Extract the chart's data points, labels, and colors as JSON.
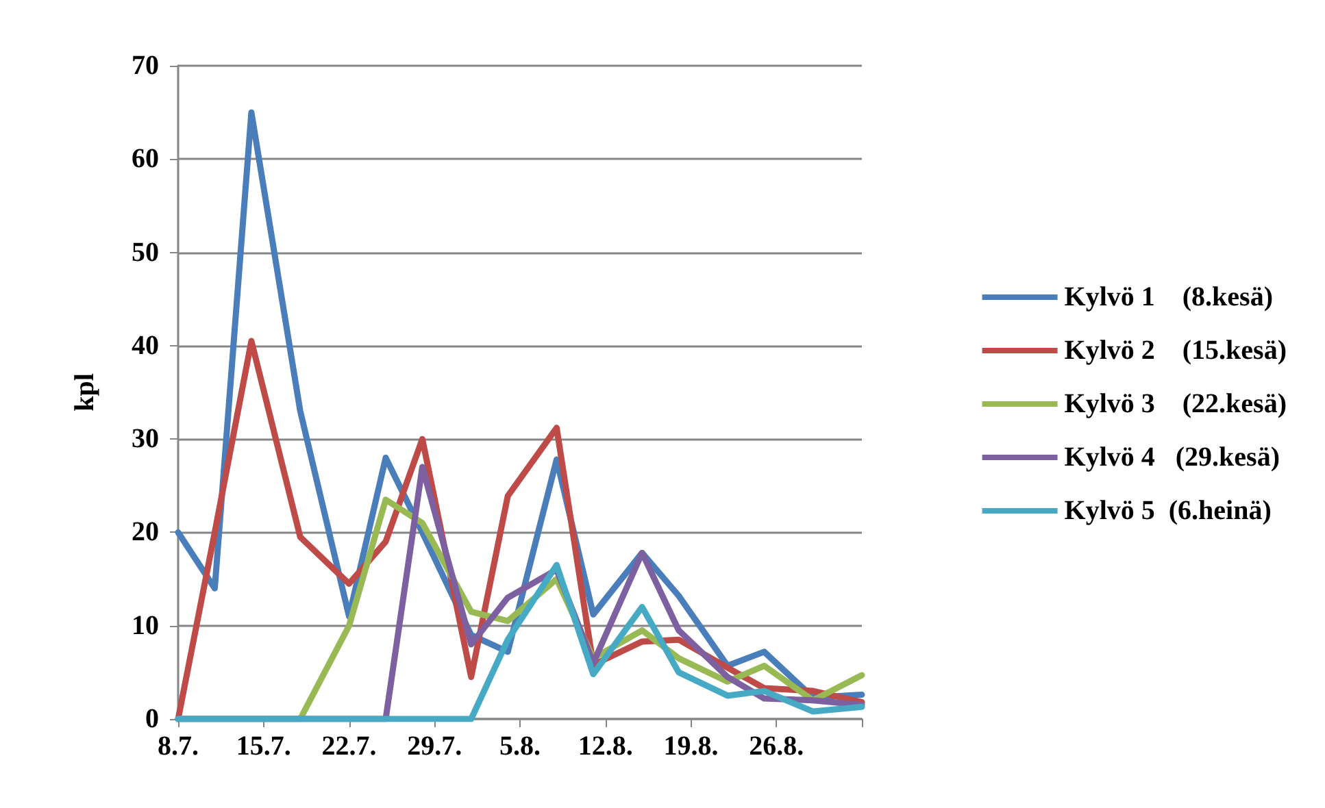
{
  "chart_data": {
    "type": "line",
    "ylabel": "kpl",
    "x": [
      "--07-08",
      "--07-11",
      "--07-14",
      "--07-18",
      "--07-22",
      "--07-25",
      "--07-28",
      "--08-01",
      "--08-04",
      "--08-08",
      "--08-11",
      "--08-15",
      "--08-18",
      "--08-22",
      "--08-25",
      "--08-29",
      "--09-02"
    ],
    "series": [
      {
        "name": "Kylvö 1    (8.kesä)",
        "color": "#4a7ebb",
        "values": [
          20,
          14,
          65,
          33,
          11,
          28,
          20,
          9,
          7.2,
          27.8,
          11.2,
          17.8,
          13.2,
          5.7,
          7.2,
          2.3,
          2.6
        ]
      },
      {
        "name": "Kylvö 2    (15.kesä)",
        "color": "#be4b48",
        "values": [
          0,
          20,
          40.5,
          19.5,
          14.5,
          19,
          30,
          4.5,
          23.9,
          31.2,
          5.8,
          8.3,
          8.5,
          5.5,
          3.3,
          3,
          1.8
        ]
      },
      {
        "name": "Kylvö 3    (22.kesä)",
        "color": "#98b954",
        "values": [
          0,
          0,
          0,
          0,
          10,
          23.5,
          21,
          11.5,
          10.5,
          15,
          6.5,
          9.5,
          6.5,
          4,
          5.7,
          2,
          4.7
        ]
      },
      {
        "name": "Kylvö 4   (29.kesä)",
        "color": "#7d60a0",
        "values": [
          0,
          0,
          0,
          0,
          0,
          0,
          27,
          8,
          13,
          16,
          6,
          17.8,
          9.5,
          4.5,
          2.2,
          2,
          1.5
        ]
      },
      {
        "name": "Kylvö 5  (6.heinä)",
        "color": "#46aac5",
        "values": [
          0,
          0,
          0,
          0,
          0,
          0,
          0,
          0,
          8.5,
          16.5,
          4.8,
          12,
          5,
          2.5,
          3,
          0.8,
          1.3
        ]
      }
    ],
    "xlim": [
      "--07-08",
      "--09-02"
    ],
    "xticks": [
      {
        "value": "--07-08",
        "label": "8.7."
      },
      {
        "value": "--07-15",
        "label": "15.7."
      },
      {
        "value": "--07-22",
        "label": "22.7."
      },
      {
        "value": "--07-29",
        "label": "29.7."
      },
      {
        "value": "--08-05",
        "label": "5.8."
      },
      {
        "value": "--08-12",
        "label": "12.8."
      },
      {
        "value": "--08-19",
        "label": "19.8."
      },
      {
        "value": "--08-26",
        "label": "26.8."
      },
      {
        "value": "--09-02",
        "label": null
      }
    ],
    "ylim": [
      0,
      70
    ],
    "yticks": [
      0,
      10,
      20,
      30,
      40,
      50,
      60,
      70
    ],
    "grid": "y",
    "legend": "right",
    "marker": "none",
    "line_style": "solid"
  }
}
